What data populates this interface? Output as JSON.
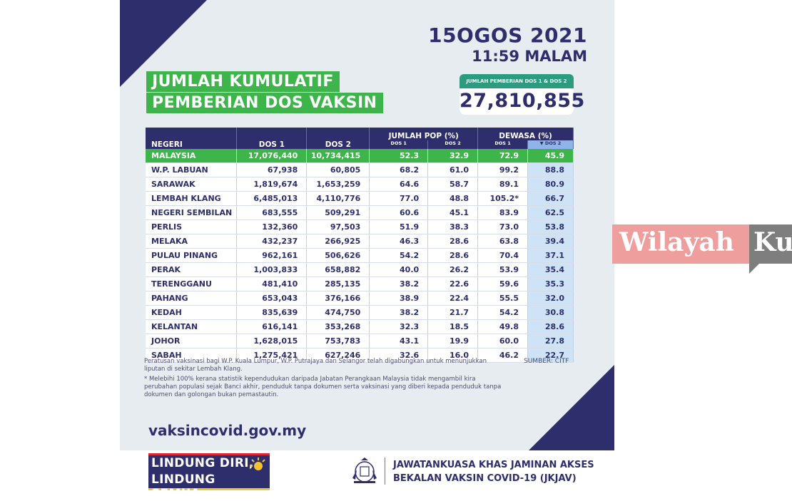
{
  "date": {
    "line1": "15OGOS 2021",
    "line2": "11:59 MALAM"
  },
  "title": {
    "line1": "JUMLAH KUMULATIF",
    "line2": "PEMBERIAN DOS VAKSIN"
  },
  "total": {
    "caption": "JUMLAH PEMBERIAN DOS 1 & DOS 2",
    "value": "27,810,855"
  },
  "table": {
    "headers": {
      "negeri": "NEGERI",
      "dos1": "DOS 1",
      "dos2": "DOS 2",
      "pop": "JUMLAH POP (%)",
      "dewasa": "DEWASA (%)",
      "sub_dos1": "DOS 1",
      "sub_dos2": "DOS 2",
      "sub_dos1b": "DOS 1",
      "sub_dos2b": "▼ DOS 2"
    },
    "rows": [
      [
        "MALAYSIA",
        "17,076,440",
        "10,734,415",
        "52.3",
        "32.9",
        "72.9",
        "45.9"
      ],
      [
        "W.P. LABUAN",
        "67,938",
        "60,805",
        "68.2",
        "61.0",
        "99.2",
        "88.8"
      ],
      [
        "SARAWAK",
        "1,819,674",
        "1,653,259",
        "64.6",
        "58.7",
        "89.1",
        "80.9"
      ],
      [
        "LEMBAH KLANG",
        "6,485,013",
        "4,110,776",
        "77.0",
        "48.8",
        "105.2*",
        "66.7"
      ],
      [
        "NEGERI SEMBILAN",
        "683,555",
        "509,291",
        "60.6",
        "45.1",
        "83.9",
        "62.5"
      ],
      [
        "PERLIS",
        "132,360",
        "97,503",
        "51.9",
        "38.3",
        "73.0",
        "53.8"
      ],
      [
        "MELAKA",
        "432,237",
        "266,925",
        "46.3",
        "28.6",
        "63.8",
        "39.4"
      ],
      [
        "PULAU PINANG",
        "962,161",
        "506,626",
        "54.2",
        "28.6",
        "70.4",
        "37.1"
      ],
      [
        "PERAK",
        "1,003,833",
        "658,882",
        "40.0",
        "26.2",
        "53.9",
        "35.4"
      ],
      [
        "TERENGGANU",
        "481,410",
        "285,135",
        "38.2",
        "22.6",
        "59.6",
        "35.3"
      ],
      [
        "PAHANG",
        "653,043",
        "376,166",
        "38.9",
        "22.4",
        "55.5",
        "32.0"
      ],
      [
        "KEDAH",
        "835,639",
        "474,750",
        "38.2",
        "21.7",
        "54.2",
        "30.8"
      ],
      [
        "KELANTAN",
        "616,141",
        "353,268",
        "32.3",
        "18.5",
        "49.8",
        "28.6"
      ],
      [
        "JOHOR",
        "1,628,015",
        "753,783",
        "43.1",
        "19.9",
        "60.0",
        "27.8"
      ],
      [
        "SABAH",
        "1,275,421",
        "627,246",
        "32.6",
        "16.0",
        "46.2",
        "22.7"
      ]
    ]
  },
  "notes": {
    "note1": "Peratusan vaksinasi bagi W.P. Kuala Lumpur, W.P. Putrajaya dan Selangor telah digabungkan untuk menunjukkan liputan di sekitar Lembah Klang.",
    "note2": "* Melebihi 100% kerana statistik kependudukan daripada Jabatan Perangkaan Malaysia tidak mengambil kira perubahan populasi sejak Banci akhir, penduduk tanpa dokumen serta vaksinasi yang diberi kepada penduduk tanpa dokumen dan golongan bukan pemastautin.",
    "source": "SUMBER: CITF"
  },
  "website": "vaksincovid.gov.my",
  "footer": {
    "slogan_line1": "LINDUNG DIRI,",
    "slogan_line2": "LINDUNG SEMUA.",
    "agency_line1": "JAWATANKUASA KHAS JAMINAN AKSES",
    "agency_line2": "BEKALAN VAKSIN COVID-19 (JKJAV)"
  },
  "banner": {
    "text": "Wilayah",
    "text2": "Ku"
  },
  "colors": {
    "navy": "#2d2e6b",
    "green": "#3db54a",
    "highlight": "#cfe3f7"
  }
}
